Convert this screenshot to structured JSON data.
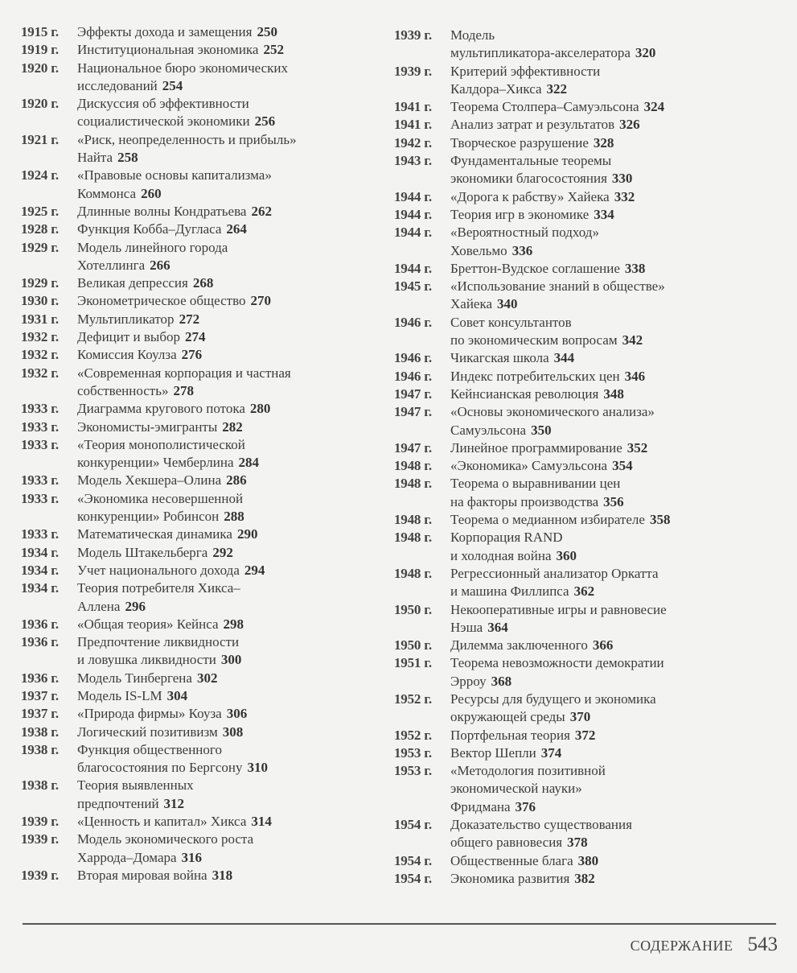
{
  "left_column": [
    {
      "year": "1915 г.",
      "lines": [
        "Эффекты дохода и замещения"
      ],
      "page": "250"
    },
    {
      "year": "1919 г.",
      "lines": [
        "Институциональная экономика"
      ],
      "page": "252"
    },
    {
      "year": "1920 г.",
      "lines": [
        "Национальное бюро экономических",
        "исследований"
      ],
      "page": "254"
    },
    {
      "year": "1920 г.",
      "lines": [
        "Дискуссия об эффективности",
        "социалистической экономики"
      ],
      "page": "256"
    },
    {
      "year": "1921 г.",
      "lines": [
        "«Риск, неопределенность и прибыль»",
        "Найта"
      ],
      "page": "258"
    },
    {
      "year": "1924 г.",
      "lines": [
        "«Правовые основы капитализма»",
        "Коммонса"
      ],
      "page": "260"
    },
    {
      "year": "1925 г.",
      "lines": [
        "Длинные волны Кондратьева"
      ],
      "page": "262"
    },
    {
      "year": "1928 г.",
      "lines": [
        "Функция Кобба–Дугласа"
      ],
      "page": "264"
    },
    {
      "year": "1929 г.",
      "lines": [
        "Модель линейного города",
        "Хотеллинга"
      ],
      "page": "266"
    },
    {
      "year": "1929 г.",
      "lines": [
        "Великая депрессия"
      ],
      "page": "268"
    },
    {
      "year": "1930 г.",
      "lines": [
        "Эконометрическое общество"
      ],
      "page": "270"
    },
    {
      "year": "1931 г.",
      "lines": [
        "Мультипликатор"
      ],
      "page": "272"
    },
    {
      "year": "1932 г.",
      "lines": [
        "Дефицит и выбор"
      ],
      "page": "274"
    },
    {
      "year": "1932 г.",
      "lines": [
        "Комиссия Коулза"
      ],
      "page": "276"
    },
    {
      "year": "1932 г.",
      "lines": [
        "«Современная корпорация и частная",
        "собственность»"
      ],
      "page": "278"
    },
    {
      "year": "1933 г.",
      "lines": [
        "Диаграмма кругового потока"
      ],
      "page": "280"
    },
    {
      "year": "1933 г.",
      "lines": [
        "Экономисты-эмигранты"
      ],
      "page": "282"
    },
    {
      "year": "1933 г.",
      "lines": [
        "«Теория монополистической",
        "конкуренции» Чемберлина"
      ],
      "page": "284"
    },
    {
      "year": "1933 г.",
      "lines": [
        "Модель Хекшера–Олина"
      ],
      "page": "286"
    },
    {
      "year": "1933 г.",
      "lines": [
        "«Экономика несовершенной",
        "конкуренции» Робинсон"
      ],
      "page": "288"
    },
    {
      "year": "1933 г.",
      "lines": [
        "Математическая динамика"
      ],
      "page": "290"
    },
    {
      "year": "1934 г.",
      "lines": [
        "Модель Штакельберга"
      ],
      "page": "292"
    },
    {
      "year": "1934 г.",
      "lines": [
        "Учет национального дохода"
      ],
      "page": "294"
    },
    {
      "year": "1934 г.",
      "lines": [
        "Теория потребителя Хикса–",
        "Аллена"
      ],
      "page": "296"
    },
    {
      "year": "1936 г.",
      "lines": [
        "«Общая теория» Кейнса"
      ],
      "page": "298"
    },
    {
      "year": "1936 г.",
      "lines": [
        "Предпочтение ликвидности",
        "и ловушка ликвидности"
      ],
      "page": "300"
    },
    {
      "year": "1936 г.",
      "lines": [
        "Модель Тинбергена"
      ],
      "page": "302"
    },
    {
      "year": "1937 г.",
      "lines": [
        "Модель IS-LM"
      ],
      "page": "304"
    },
    {
      "year": "1937 г.",
      "lines": [
        "«Природа фирмы» Коуза"
      ],
      "page": "306"
    },
    {
      "year": "1938 г.",
      "lines": [
        "Логический позитивизм"
      ],
      "page": "308"
    },
    {
      "year": "1938 г.",
      "lines": [
        "Функция общественного",
        "благосостояния по Бергсону"
      ],
      "page": "310"
    },
    {
      "year": "1938 г.",
      "lines": [
        "Теория выявленных",
        "предпочтений"
      ],
      "page": "312"
    },
    {
      "year": "1939 г.",
      "lines": [
        "«Ценность и капитал» Хикса"
      ],
      "page": "314"
    },
    {
      "year": "1939 г.",
      "lines": [
        "Модель экономического роста",
        "Харрода–Домара"
      ],
      "page": "316"
    },
    {
      "year": "1939 г.",
      "lines": [
        "Вторая мировая война"
      ],
      "page": "318"
    }
  ],
  "right_column": [
    {
      "year": "1939 г.",
      "lines": [
        "Модель",
        "мультипликатора-акселератора"
      ],
      "page": "320"
    },
    {
      "year": "1939 г.",
      "lines": [
        "Критерий эффективности",
        "Калдора–Хикса"
      ],
      "page": "322"
    },
    {
      "year": "1941 г.",
      "lines": [
        "Теорема Столпера–Самуэльсона"
      ],
      "page": "324"
    },
    {
      "year": "1941 г.",
      "lines": [
        "Анализ затрат и результатов"
      ],
      "page": "326"
    },
    {
      "year": "1942 г.",
      "lines": [
        "Творческое разрушение"
      ],
      "page": "328"
    },
    {
      "year": "1943 г.",
      "lines": [
        "Фундаментальные теоремы",
        "экономики благосостояния"
      ],
      "page": "330"
    },
    {
      "year": "1944 г.",
      "lines": [
        "«Дорога к рабству» Хайека"
      ],
      "page": "332"
    },
    {
      "year": "1944 г.",
      "lines": [
        "Теория игр в экономике"
      ],
      "page": "334"
    },
    {
      "year": "1944 г.",
      "lines": [
        "«Вероятностный подход»",
        "Ховельмо"
      ],
      "page": "336"
    },
    {
      "year": "1944 г.",
      "lines": [
        "Бреттон-Вудское соглашение"
      ],
      "page": "338"
    },
    {
      "year": "1945 г.",
      "lines": [
        "«Использование знаний в обществе»",
        "Хайека"
      ],
      "page": "340"
    },
    {
      "year": "1946 г.",
      "lines": [
        "Совет консультантов",
        "по экономическим вопросам"
      ],
      "page": "342"
    },
    {
      "year": "1946 г.",
      "lines": [
        "Чикагская школа"
      ],
      "page": "344"
    },
    {
      "year": "1946 г.",
      "lines": [
        "Индекс потребительских цен"
      ],
      "page": "346"
    },
    {
      "year": "1947 г.",
      "lines": [
        "Кейнсианская революция"
      ],
      "page": "348"
    },
    {
      "year": "1947 г.",
      "lines": [
        "«Основы экономического анализа»",
        "Самуэльсона"
      ],
      "page": "350"
    },
    {
      "year": "1947 г.",
      "lines": [
        "Линейное программирование"
      ],
      "page": "352"
    },
    {
      "year": "1948 г.",
      "lines": [
        "«Экономика» Самуэльсона"
      ],
      "page": "354"
    },
    {
      "year": "1948 г.",
      "lines": [
        "Теорема о выравнивании цен",
        "на факторы производства"
      ],
      "page": "356"
    },
    {
      "year": "1948 г.",
      "lines": [
        "Теорема о медианном избирателе"
      ],
      "page": "358"
    },
    {
      "year": "1948 г.",
      "lines": [
        "Корпорация RAND",
        "и холодная война"
      ],
      "page": "360"
    },
    {
      "year": "1948 г.",
      "lines": [
        "Регрессионный анализатор Оркатта",
        "и машина Филлипса"
      ],
      "page": "362"
    },
    {
      "year": "1950 г.",
      "lines": [
        "Некооперативные игры и равновесие",
        "Нэша"
      ],
      "page": "364"
    },
    {
      "year": "1950 г.",
      "lines": [
        "Дилемма заключенного"
      ],
      "page": "366"
    },
    {
      "year": "1951 г.",
      "lines": [
        "Теорема невозможности демократии",
        "Эрроу"
      ],
      "page": "368"
    },
    {
      "year": "1952 г.",
      "lines": [
        "Ресурсы для будущего и экономика",
        "окружающей среды"
      ],
      "page": "370"
    },
    {
      "year": "1952 г.",
      "lines": [
        "Портфельная теория"
      ],
      "page": "372"
    },
    {
      "year": "1953 г.",
      "lines": [
        "Вектор Шепли"
      ],
      "page": "374"
    },
    {
      "year": "1953 г.",
      "lines": [
        "«Методология позитивной",
        "экономической науки»",
        "Фридмана"
      ],
      "page": "376"
    },
    {
      "year": "1954 г.",
      "lines": [
        "Доказательство существования",
        "общего равновесия"
      ],
      "page": "378"
    },
    {
      "year": "1954 г.",
      "lines": [
        "Общественные блага"
      ],
      "page": "380"
    },
    {
      "year": "1954 г.",
      "lines": [
        "Экономика развития"
      ],
      "page": "382"
    }
  ],
  "footer": {
    "section_label": "СОДЕРЖАНИЕ",
    "page_number": "543"
  }
}
